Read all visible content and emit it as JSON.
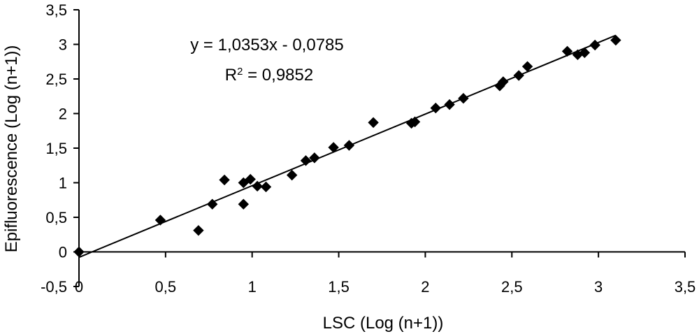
{
  "chart_data": {
    "type": "scatter",
    "xlabel": "LSC (Log (n+1))",
    "ylabel": "Epifluorescence (Log (n+1))",
    "xlim": [
      0,
      3.5
    ],
    "ylim": [
      -0.5,
      3.5
    ],
    "x_ticks": [
      0,
      0.5,
      1,
      1.5,
      2,
      2.5,
      3,
      3.5
    ],
    "y_ticks": [
      -0.5,
      0,
      0.5,
      1,
      1.5,
      2,
      2.5,
      3,
      3.5
    ],
    "x_tick_labels": [
      "0",
      "0,5",
      "1",
      "1,5",
      "2",
      "2,5",
      "3",
      "3,5"
    ],
    "y_tick_labels": [
      "-0,5",
      "0",
      "0,5",
      "1",
      "1,5",
      "2",
      "2,5",
      "3",
      "3,5"
    ],
    "grid": false,
    "marker": "diamond",
    "marker_color": "#000000",
    "series": [
      {
        "points": [
          [
            0.0,
            0.0
          ],
          [
            0.47,
            0.46
          ],
          [
            0.69,
            0.31
          ],
          [
            0.77,
            0.69
          ],
          [
            0.84,
            1.04
          ],
          [
            0.95,
            0.69
          ],
          [
            0.95,
            1.0
          ],
          [
            0.99,
            1.05
          ],
          [
            1.03,
            0.95
          ],
          [
            1.08,
            0.94
          ],
          [
            1.23,
            1.11
          ],
          [
            1.31,
            1.32
          ],
          [
            1.36,
            1.36
          ],
          [
            1.47,
            1.51
          ],
          [
            1.56,
            1.54
          ],
          [
            1.7,
            1.87
          ],
          [
            1.92,
            1.86
          ],
          [
            1.94,
            1.88
          ],
          [
            2.06,
            2.08
          ],
          [
            2.14,
            2.13
          ],
          [
            2.22,
            2.22
          ],
          [
            2.43,
            2.4
          ],
          [
            2.45,
            2.46
          ],
          [
            2.54,
            2.55
          ],
          [
            2.59,
            2.68
          ],
          [
            2.82,
            2.9
          ],
          [
            2.88,
            2.85
          ],
          [
            2.92,
            2.88
          ],
          [
            2.98,
            2.99
          ],
          [
            3.1,
            3.06
          ]
        ]
      }
    ],
    "trendline": {
      "slope": 1.0353,
      "intercept": -0.0785,
      "x_range": [
        0,
        3.1
      ]
    },
    "annotations": {
      "equation": "y = 1,0353x - 0,0785",
      "r2_prefix": "R",
      "r2_exponent": "2",
      "r2_suffix": " = 0,9852"
    }
  }
}
